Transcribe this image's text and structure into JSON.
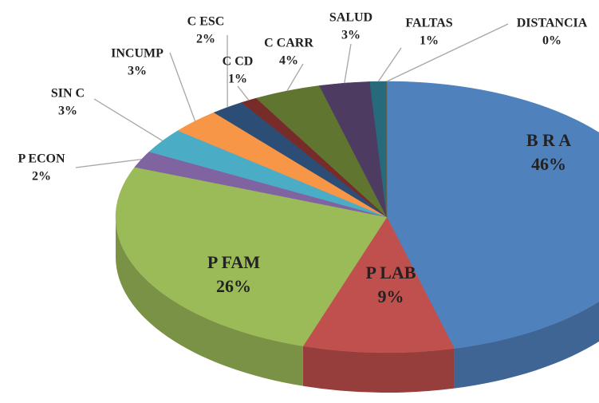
{
  "chart_data": {
    "type": "pie",
    "categories": [
      "B R A",
      "P LAB",
      "P FAM",
      "P ECON",
      "SIN C",
      "INCUMP",
      "C ESC",
      "C CD",
      "C CARR",
      "SALUD",
      "FALTAS",
      "DISTANCIA"
    ],
    "values": [
      46,
      9,
      26,
      2,
      3,
      3,
      2,
      1,
      4,
      3,
      1,
      0
    ],
    "value_labels": [
      "46%",
      "9%",
      "26%",
      "2%",
      "3%",
      "3%",
      "2%",
      "1%",
      "4%",
      "3%",
      "1%",
      "0%"
    ],
    "colors": [
      "#4f81bd",
      "#c0504d",
      "#9bbb59",
      "#8064a2",
      "#4bacc6",
      "#f79646",
      "#2c4d75",
      "#772c2a",
      "#5f7530",
      "#4d3b62",
      "#276a7c",
      "#b65708"
    ]
  }
}
